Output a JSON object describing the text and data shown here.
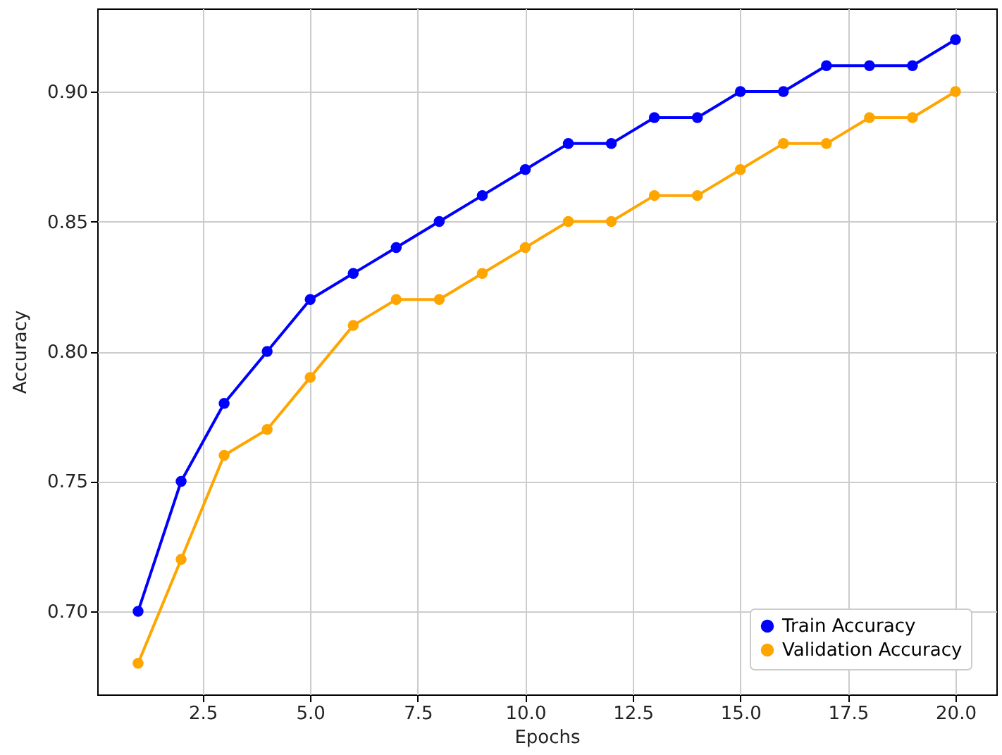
{
  "chart_data": {
    "type": "line",
    "xlabel": "Epochs",
    "ylabel": "Accuracy",
    "x": [
      1,
      2,
      3,
      4,
      5,
      6,
      7,
      8,
      9,
      10,
      11,
      12,
      13,
      14,
      15,
      16,
      17,
      18,
      19,
      20
    ],
    "series": [
      {
        "name": "Train Accuracy",
        "color": "#0000ff",
        "values": [
          0.7,
          0.75,
          0.78,
          0.8,
          0.82,
          0.83,
          0.84,
          0.85,
          0.86,
          0.87,
          0.88,
          0.88,
          0.89,
          0.89,
          0.9,
          0.9,
          0.91,
          0.91,
          0.91,
          0.92
        ]
      },
      {
        "name": "Validation Accuracy",
        "color": "#ffa500",
        "values": [
          0.68,
          0.72,
          0.76,
          0.77,
          0.79,
          0.81,
          0.82,
          0.82,
          0.83,
          0.84,
          0.85,
          0.85,
          0.86,
          0.86,
          0.87,
          0.88,
          0.88,
          0.89,
          0.89,
          0.9
        ]
      }
    ],
    "xlim": [
      0.05,
      20.95
    ],
    "ylim": [
      0.668,
      0.932
    ],
    "xticks": [
      {
        "value": 2.5,
        "label": "2.5"
      },
      {
        "value": 5,
        "label": "5.0"
      },
      {
        "value": 7.5,
        "label": "7.5"
      },
      {
        "value": 10,
        "label": "10.0"
      },
      {
        "value": 12.5,
        "label": "12.5"
      },
      {
        "value": 15,
        "label": "15.0"
      },
      {
        "value": 17.5,
        "label": "17.5"
      },
      {
        "value": 20,
        "label": "20.0"
      }
    ],
    "yticks": [
      {
        "value": 0.7,
        "label": "0.70"
      },
      {
        "value": 0.75,
        "label": "0.75"
      },
      {
        "value": 0.8,
        "label": "0.80"
      },
      {
        "value": 0.85,
        "label": "0.85"
      },
      {
        "value": 0.9,
        "label": "0.90"
      }
    ],
    "grid": true,
    "legend": "bottom right",
    "marker": "circle",
    "line_style": "solid"
  }
}
